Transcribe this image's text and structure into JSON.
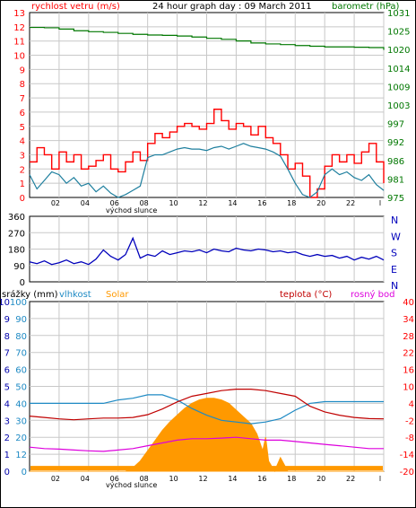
{
  "panel1": {
    "title": "24 hour graph day : 09 March 2011",
    "left_label": "rychlost vetru (m/s)",
    "right_label": "barometr (hPa)",
    "sunrise_label": "východ slunce"
  },
  "panel2": {
    "direction_labels": [
      "N",
      "W",
      "S",
      "E",
      "N"
    ]
  },
  "panel3": {
    "labels": {
      "rain": "srážky (mm)",
      "humidity": "vlhkost",
      "solar": "Solar",
      "temperature": "teplota (°C)",
      "dewpoint": "rosný bod"
    },
    "sunrise_label": "východ slunce"
  },
  "colors": {
    "wind": "#ff0000",
    "wind_avg": "#1e7f9e",
    "pressure": "#007700",
    "direction": "#0000bb",
    "humidity": "#1e8ac4",
    "temperature": "#c00000",
    "dewpoint": "#dd00dd",
    "solar": "#ff9900",
    "axis_left": "#ff0000",
    "axis_humidity": "#1e8ac4",
    "axis_rain": "#0000aa",
    "axis_temp": "#ff0000",
    "grid": "#c8c8c8",
    "frame": "#000000"
  },
  "chart_data": [
    {
      "type": "line",
      "name": "wind-pressure",
      "x_ticks": [
        "02",
        "04",
        "06",
        "08",
        "10",
        "12",
        "14",
        "16",
        "18",
        "20",
        "22",
        "l"
      ],
      "y_left_ticks": [
        "0",
        "1",
        "2",
        "3",
        "4",
        "5",
        "6",
        "7",
        "8",
        "9",
        "10",
        "11",
        "12",
        "13"
      ],
      "y_right_ticks": [
        "975",
        "981",
        "986",
        "992",
        "997",
        "1003",
        "1009",
        "1014",
        "1020",
        "1025",
        "1031"
      ],
      "ylim_left": [
        0,
        13
      ],
      "ylim_right": [
        975,
        1031
      ],
      "series": [
        {
          "key": "gust",
          "x": [
            0,
            0.5,
            1,
            1.5,
            2,
            2.5,
            3,
            3.5,
            4,
            4.5,
            5,
            5.5,
            6,
            6.5,
            7,
            7.5,
            8,
            8.5,
            9,
            9.5,
            10,
            10.5,
            11,
            11.5,
            12,
            12.5,
            13,
            13.5,
            14,
            14.5,
            15,
            15.5,
            16,
            16.5,
            17,
            17.5,
            18,
            18.5,
            19,
            19.5,
            20,
            20.5,
            21,
            21.5,
            22,
            22.5,
            23,
            23.5,
            24
          ],
          "y": [
            2.5,
            3.5,
            3.0,
            2.0,
            3.2,
            2.5,
            3.0,
            2.0,
            2.2,
            2.6,
            3.0,
            2.0,
            1.8,
            2.5,
            3.2,
            2.6,
            3.8,
            4.5,
            4.2,
            4.6,
            5.0,
            5.2,
            5.0,
            4.8,
            5.2,
            6.2,
            5.4,
            4.8,
            5.2,
            5.0,
            4.4,
            5.0,
            4.2,
            3.8,
            3.0,
            2.0,
            2.4,
            1.5,
            0.0,
            0.6,
            2.2,
            3.0,
            2.5,
            3.0,
            2.4,
            3.2,
            3.8,
            2.5,
            1.0
          ]
        },
        {
          "key": "average",
          "x": [
            0,
            0.5,
            1,
            1.5,
            2,
            2.5,
            3,
            3.5,
            4,
            4.5,
            5,
            5.5,
            6,
            6.5,
            7,
            7.5,
            8,
            8.5,
            9,
            9.5,
            10,
            10.5,
            11,
            11.5,
            12,
            12.5,
            13,
            13.5,
            14,
            14.5,
            15,
            15.5,
            16,
            16.5,
            17,
            17.5,
            18,
            18.5,
            19,
            19.5,
            20,
            20.5,
            21,
            21.5,
            22,
            22.5,
            23,
            23.5,
            24
          ],
          "y": [
            1.6,
            0.6,
            1.2,
            1.8,
            1.6,
            1.0,
            1.4,
            0.8,
            1.0,
            0.4,
            0.8,
            0.3,
            0.0,
            0.2,
            0.5,
            0.8,
            2.8,
            3.0,
            3.0,
            3.2,
            3.4,
            3.5,
            3.4,
            3.4,
            3.3,
            3.5,
            3.6,
            3.4,
            3.6,
            3.8,
            3.6,
            3.5,
            3.4,
            3.2,
            2.9,
            2.0,
            1.0,
            0.2,
            0.0,
            0.4,
            1.6,
            2.0,
            1.6,
            1.8,
            1.4,
            1.2,
            1.6,
            0.9,
            0.5
          ]
        },
        {
          "key": "pressure",
          "axis": "right",
          "x": [
            0,
            1,
            2,
            3,
            4,
            5,
            6,
            7,
            8,
            9,
            10,
            11,
            12,
            13,
            14,
            15,
            16,
            17,
            18,
            19,
            20,
            21,
            22,
            23,
            24
          ],
          "y": [
            1026.5,
            1026.4,
            1026.0,
            1025.5,
            1025.2,
            1025.0,
            1024.7,
            1024.4,
            1024.2,
            1024.1,
            1023.9,
            1023.6,
            1023.2,
            1022.9,
            1022.4,
            1021.8,
            1021.5,
            1021.3,
            1021.0,
            1020.8,
            1020.6,
            1020.6,
            1020.5,
            1020.4,
            1019.7
          ]
        }
      ]
    },
    {
      "type": "line",
      "name": "wind-direction",
      "y_ticks": [
        "0",
        "90",
        "180",
        "270",
        "360"
      ],
      "ylim": [
        0,
        360
      ],
      "x": [
        0,
        0.5,
        1,
        1.5,
        2,
        2.5,
        3,
        3.5,
        4,
        4.5,
        5,
        5.5,
        6,
        6.5,
        7,
        7.5,
        8,
        8.5,
        9,
        9.5,
        10,
        10.5,
        11,
        11.5,
        12,
        12.5,
        13,
        13.5,
        14,
        14.5,
        15,
        15.5,
        16,
        16.5,
        17,
        17.5,
        18,
        18.5,
        19,
        19.5,
        20,
        20.5,
        21,
        21.5,
        22,
        22.5,
        23,
        23.5,
        24
      ],
      "y": [
        110,
        100,
        115,
        95,
        105,
        120,
        100,
        110,
        95,
        125,
        175,
        140,
        120,
        150,
        240,
        130,
        150,
        140,
        170,
        150,
        160,
        170,
        165,
        175,
        160,
        180,
        170,
        165,
        185,
        175,
        170,
        180,
        175,
        165,
        170,
        160,
        165,
        150,
        140,
        150,
        140,
        145,
        130,
        140,
        120,
        135,
        125,
        140,
        120
      ]
    },
    {
      "type": "line",
      "name": "weather",
      "y_rain_ticks": [
        "0",
        "1",
        "2",
        "3",
        "4",
        "5",
        "6",
        "7",
        "8",
        "9",
        "10"
      ],
      "y_humidity_ticks": [
        "0",
        "12",
        "20",
        "30",
        "40",
        "50",
        "60",
        "70",
        "80",
        "90",
        "100"
      ],
      "y_temp_ticks": [
        "-20",
        "-14",
        "-8",
        "-2",
        "4",
        "10",
        "16",
        "22",
        "28",
        "34",
        "40"
      ],
      "ylim_humidity": [
        0,
        100
      ],
      "ylim_temp": [
        -20,
        40
      ],
      "series": [
        {
          "key": "humidity",
          "x": [
            0,
            1,
            2,
            3,
            4,
            5,
            6,
            7,
            8,
            9,
            10,
            11,
            12,
            13,
            14,
            15,
            16,
            17,
            18,
            19,
            20,
            21,
            22,
            23,
            24
          ],
          "y": [
            40,
            40,
            40,
            40,
            40,
            40,
            42,
            43,
            45,
            45,
            42,
            37,
            33,
            30,
            29,
            28,
            29,
            31,
            36,
            40,
            41,
            41,
            41,
            41,
            41
          ]
        },
        {
          "key": "temperature",
          "x": [
            0,
            1,
            2,
            3,
            4,
            5,
            6,
            7,
            8,
            9,
            10,
            11,
            12,
            13,
            14,
            15,
            16,
            17,
            18,
            19,
            20,
            21,
            22,
            23,
            24
          ],
          "y": [
            -0.5,
            -1.0,
            -1.5,
            -1.8,
            -1.5,
            -1.2,
            -1.2,
            -1.0,
            0.0,
            2.0,
            4.5,
            6.5,
            7.5,
            8.5,
            9.0,
            9.0,
            8.5,
            7.5,
            6.5,
            3.0,
            1.0,
            -0.2,
            -1.0,
            -1.4,
            -1.5
          ]
        },
        {
          "key": "dewpoint",
          "x": [
            0,
            1,
            2,
            3,
            4,
            5,
            6,
            7,
            8,
            9,
            10,
            11,
            12,
            13,
            14,
            15,
            16,
            17,
            18,
            19,
            20,
            21,
            22,
            23,
            24
          ],
          "y": [
            -11.5,
            -12.0,
            -12.2,
            -12.5,
            -12.8,
            -13.0,
            -12.5,
            -12.0,
            -11.0,
            -10.0,
            -9.0,
            -8.5,
            -8.5,
            -8.3,
            -8.0,
            -8.5,
            -9.0,
            -9.0,
            -9.5,
            -10.0,
            -10.5,
            -11.0,
            -11.5,
            -12.0,
            -12.0
          ]
        },
        {
          "key": "solar",
          "x": [
            0,
            6.5,
            7,
            7.5,
            8,
            8.5,
            9,
            9.5,
            10,
            10.5,
            11,
            11.5,
            12,
            12.5,
            13,
            13.5,
            14,
            14.5,
            15,
            15.4,
            15.8,
            16.0,
            16.2,
            16.6,
            17.0,
            17.5,
            24
          ],
          "y": [
            0,
            0,
            2,
            6,
            12,
            18,
            24,
            29,
            33,
            37,
            40,
            42,
            43,
            43,
            42,
            40,
            36,
            32,
            28,
            22,
            12,
            20,
            6,
            0,
            8,
            0,
            0
          ]
        },
        {
          "key": "rain",
          "x": [
            0,
            24
          ],
          "y": [
            0.1,
            0.1
          ]
        }
      ]
    }
  ]
}
